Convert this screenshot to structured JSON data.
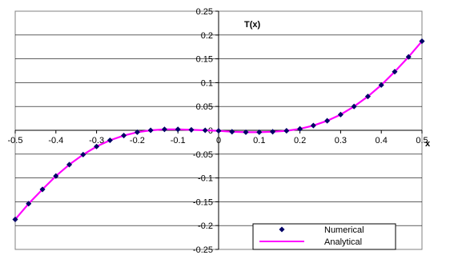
{
  "chart_data": {
    "type": "scatter",
    "title": "",
    "ylabel": "T(x)",
    "xlabel": "x",
    "xlim": [
      -0.5,
      0.5
    ],
    "ylim": [
      -0.25,
      0.25
    ],
    "x_ticks": [
      -0.5,
      -0.4,
      -0.3,
      -0.2,
      -0.1,
      0,
      0.1,
      0.2,
      0.3,
      0.4,
      0.5
    ],
    "x_tick_labels": [
      "-0.5",
      "-0.4",
      "-0.3",
      "-0.2",
      "-0.1",
      "0",
      "0.1",
      "0.2",
      "0.3",
      "0.4",
      "0.5"
    ],
    "y_ticks": [
      0.25,
      0.2,
      0.15,
      0.1,
      0.05,
      0,
      -0.05,
      -0.1,
      -0.15,
      -0.2,
      -0.25
    ],
    "y_tick_labels": [
      "0.25",
      "0.2",
      "0.15",
      "0.1",
      "0.05",
      "0",
      "-0.05",
      "-0.1",
      "-0.15",
      "-0.2",
      "-0.25"
    ],
    "grid": "horizontal",
    "legend_position": "bottom-right",
    "series": [
      {
        "name": "Numerical",
        "style": "markers",
        "marker": "diamond",
        "color": "#000066",
        "x": [
          -0.5,
          -0.467,
          -0.433,
          -0.4,
          -0.367,
          -0.333,
          -0.3,
          -0.267,
          -0.233,
          -0.2,
          -0.167,
          -0.133,
          -0.1,
          -0.067,
          -0.033,
          0,
          0.033,
          0.067,
          0.1,
          0.133,
          0.167,
          0.2,
          0.233,
          0.267,
          0.3,
          0.333,
          0.367,
          0.4,
          0.433,
          0.467,
          0.5
        ],
        "y": [
          -0.187,
          -0.154,
          -0.124,
          -0.096,
          -0.072,
          -0.051,
          -0.034,
          -0.021,
          -0.011,
          -0.004,
          0.0,
          0.002,
          0.002,
          0.001,
          0.0,
          -0.001,
          -0.003,
          -0.004,
          -0.004,
          -0.003,
          -0.001,
          0.003,
          0.01,
          0.02,
          0.033,
          0.05,
          0.071,
          0.095,
          0.123,
          0.154,
          0.187
        ]
      },
      {
        "name": "Analytical",
        "style": "line",
        "color": "#ff00ff",
        "x": [
          -0.5,
          -0.467,
          -0.433,
          -0.4,
          -0.367,
          -0.333,
          -0.3,
          -0.267,
          -0.233,
          -0.2,
          -0.167,
          -0.133,
          -0.1,
          -0.067,
          -0.033,
          0,
          0.033,
          0.067,
          0.1,
          0.133,
          0.167,
          0.2,
          0.233,
          0.267,
          0.3,
          0.333,
          0.367,
          0.4,
          0.433,
          0.467,
          0.5
        ],
        "y": [
          -0.187,
          -0.154,
          -0.124,
          -0.096,
          -0.072,
          -0.051,
          -0.034,
          -0.021,
          -0.011,
          -0.004,
          0.0,
          0.002,
          0.002,
          0.001,
          0.0,
          -0.001,
          -0.003,
          -0.004,
          -0.004,
          -0.003,
          -0.001,
          0.003,
          0.01,
          0.02,
          0.033,
          0.05,
          0.071,
          0.095,
          0.123,
          0.154,
          0.187
        ]
      }
    ]
  }
}
